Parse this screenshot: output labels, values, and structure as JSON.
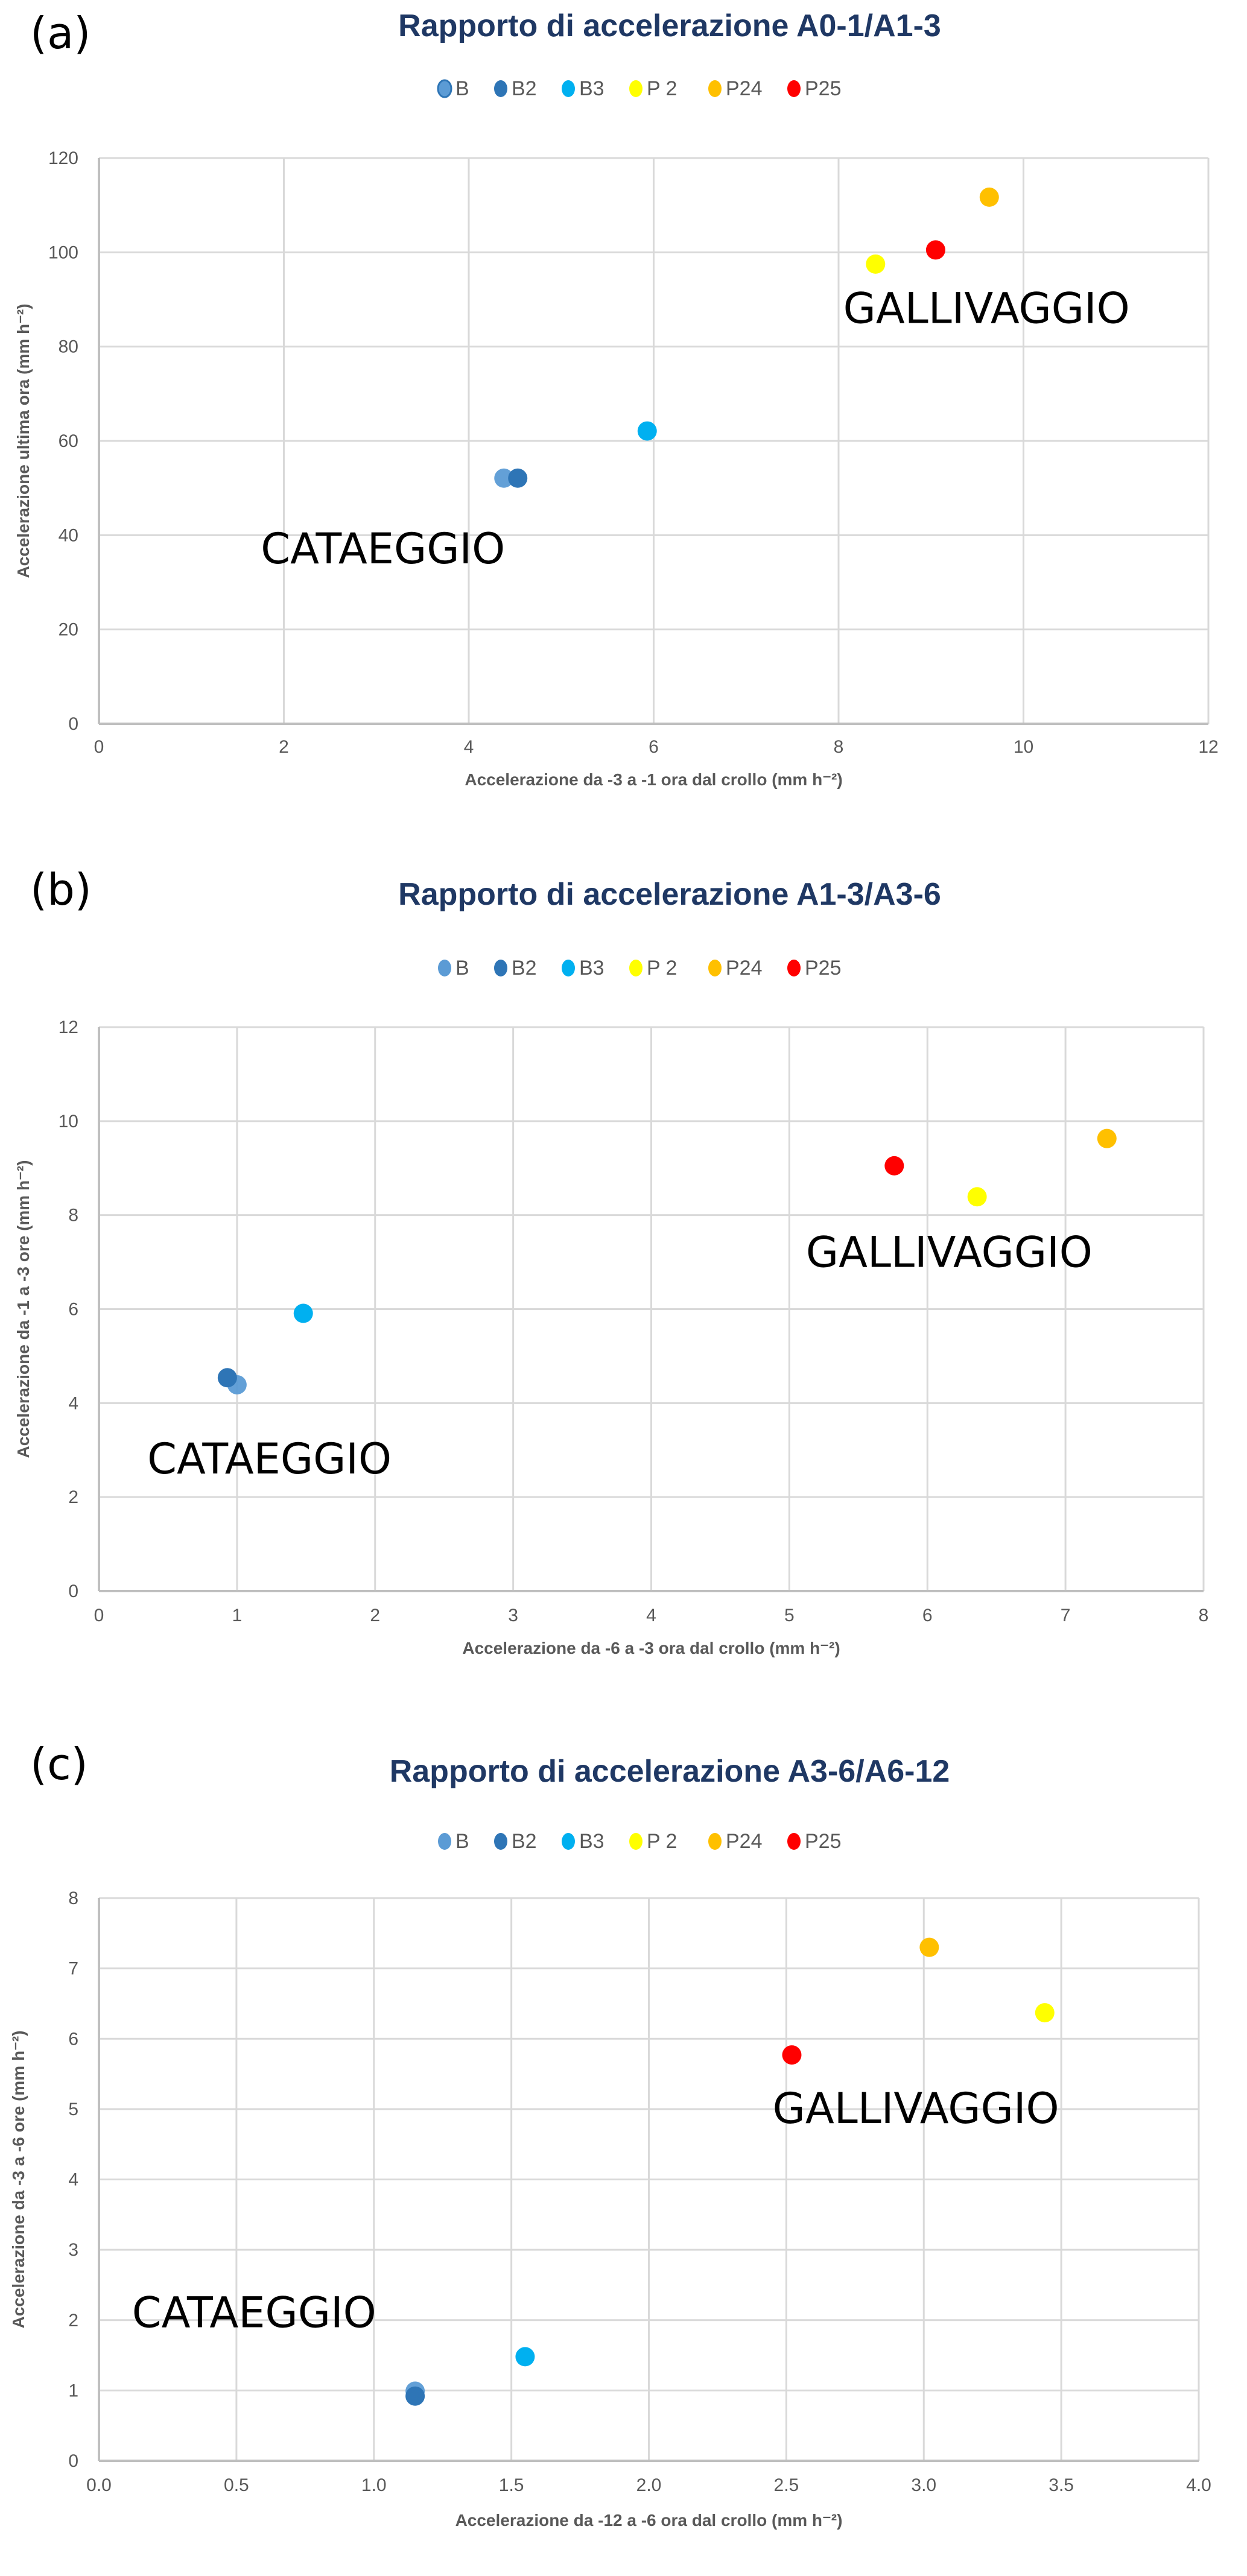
{
  "chart_data": [
    {
      "type": "scatter",
      "panel": "(a)",
      "title": "Rapporto di accelerazione A0-1/A1-3",
      "xlabel": "Accelerazione da -3 a -1 ora dal crollo (mm h⁻²)",
      "ylabel": "Accelerazione ultima ora (mm h⁻²)",
      "xlim": [
        0,
        12
      ],
      "ylim": [
        0,
        120
      ],
      "xticks": [
        0,
        2,
        4,
        6,
        8,
        10,
        12
      ],
      "xtick_labels": [
        "0",
        "2",
        "4",
        "6",
        "8",
        "10",
        "12"
      ],
      "yticks": [
        0,
        20,
        40,
        60,
        80,
        100,
        120
      ],
      "ytick_labels": [
        "0",
        "20",
        "40",
        "60",
        "80",
        "100",
        "120"
      ],
      "grid": true,
      "legend_position": "top-center",
      "series": [
        {
          "name": "B",
          "color": "#5B9BD5",
          "x": [
            4.38
          ],
          "y": [
            52.1
          ]
        },
        {
          "name": "B2",
          "color": "#2E75B6",
          "x": [
            4.53
          ],
          "y": [
            52.1
          ]
        },
        {
          "name": "B3",
          "color": "#00B0F0",
          "x": [
            5.93
          ],
          "y": [
            62.1
          ]
        },
        {
          "name": "P 2",
          "color": "#FFFF00",
          "x": [
            8.4
          ],
          "y": [
            97.5
          ]
        },
        {
          "name": "P24",
          "color": "#FFC000",
          "x": [
            9.63
          ],
          "y": [
            111.7
          ]
        },
        {
          "name": "P25",
          "color": "#FF0000",
          "x": [
            9.05
          ],
          "y": [
            100.5
          ]
        }
      ],
      "annotations": [
        {
          "text": "CATAEGGIO",
          "x": 1.75,
          "y": 34
        },
        {
          "text": "GALLIVAGGIO",
          "x": 8.05,
          "y": 85
        }
      ]
    },
    {
      "type": "scatter",
      "panel": "(b)",
      "title": "Rapporto di accelerazione A1-3/A3-6",
      "xlabel": "Accelerazione da -6 a -3 ora dal crollo (mm h⁻²)",
      "ylabel": "Accelerazione da -1 a -3 ore  (mm h⁻²)",
      "xlim": [
        0,
        8
      ],
      "ylim": [
        0,
        12
      ],
      "xticks": [
        0,
        1,
        2,
        3,
        4,
        5,
        6,
        7,
        8
      ],
      "xtick_labels": [
        "0",
        "1",
        "2",
        "3",
        "4",
        "5",
        "6",
        "7",
        "8"
      ],
      "yticks": [
        0,
        2,
        4,
        6,
        8,
        10,
        12
      ],
      "ytick_labels": [
        "0",
        "2",
        "4",
        "6",
        "8",
        "10",
        "12"
      ],
      "grid": true,
      "legend_position": "top-center",
      "series": [
        {
          "name": "B",
          "color": "#5B9BD5",
          "x": [
            1.0
          ],
          "y": [
            4.39
          ]
        },
        {
          "name": "B2",
          "color": "#2E75B6",
          "x": [
            0.93
          ],
          "y": [
            4.54
          ]
        },
        {
          "name": "B3",
          "color": "#00B0F0",
          "x": [
            1.48
          ],
          "y": [
            5.91
          ]
        },
        {
          "name": "P 2",
          "color": "#FFFF00",
          "x": [
            6.36
          ],
          "y": [
            8.39
          ]
        },
        {
          "name": "P24",
          "color": "#FFC000",
          "x": [
            7.3
          ],
          "y": [
            9.63
          ]
        },
        {
          "name": "P25",
          "color": "#FF0000",
          "x": [
            5.76
          ],
          "y": [
            9.05
          ]
        }
      ],
      "annotations": [
        {
          "text": "CATAEGGIO",
          "x": 0.35,
          "y": 2.5
        },
        {
          "text": "GALLIVAGGIO",
          "x": 5.12,
          "y": 6.9
        }
      ]
    },
    {
      "type": "scatter",
      "panel": "(c)",
      "title": "Rapporto di accelerazione A3-6/A6-12",
      "xlabel": "Accelerazione da -12 a -6 ora dal crollo (mm h⁻²)",
      "ylabel": "Accelerazione da -3 a -6 ore  (mm h⁻²)",
      "xlim": [
        0,
        4
      ],
      "ylim": [
        0,
        8
      ],
      "xticks": [
        0,
        0.5,
        1,
        1.5,
        2,
        2.5,
        3,
        3.5,
        4
      ],
      "xtick_labels": [
        "0.0",
        "0.5",
        "1.0",
        "1.5",
        "2.0",
        "2.5",
        "3.0",
        "3.5",
        "4.0"
      ],
      "yticks": [
        0,
        1,
        2,
        3,
        4,
        5,
        6,
        7,
        8
      ],
      "ytick_labels": [
        "0",
        "1",
        "2",
        "3",
        "4",
        "5",
        "6",
        "7",
        "8"
      ],
      "grid": true,
      "legend_position": "top-center",
      "series": [
        {
          "name": "B",
          "color": "#5B9BD5",
          "x": [
            1.15
          ],
          "y": [
            0.99
          ]
        },
        {
          "name": "B2",
          "color": "#2E75B6",
          "x": [
            1.15
          ],
          "y": [
            0.92
          ]
        },
        {
          "name": "B3",
          "color": "#00B0F0",
          "x": [
            1.55
          ],
          "y": [
            1.48
          ]
        },
        {
          "name": "P 2",
          "color": "#FFFF00",
          "x": [
            3.44
          ],
          "y": [
            6.37
          ]
        },
        {
          "name": "P24",
          "color": "#FFC000",
          "x": [
            3.02
          ],
          "y": [
            7.3
          ]
        },
        {
          "name": "P25",
          "color": "#FF0000",
          "x": [
            2.52
          ],
          "y": [
            5.77
          ]
        }
      ],
      "annotations": [
        {
          "text": "CATAEGGIO",
          "x": 0.12,
          "y": 1.9
        },
        {
          "text": "GALLIVAGGIO",
          "x": 2.45,
          "y": 4.8
        }
      ]
    }
  ]
}
